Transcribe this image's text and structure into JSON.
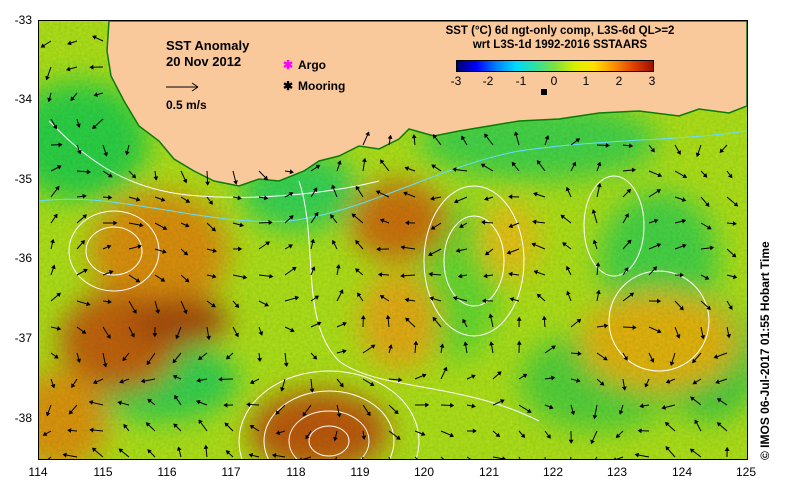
{
  "title": {
    "line1": "SST Anomaly",
    "line2": "20 Nov 2012"
  },
  "legend": {
    "argo_label": "Argo",
    "mooring_label": "Mooring",
    "argo_color": "#ff00ff",
    "mooring_color": "#000000"
  },
  "scale_arrow": {
    "label": "0.5 m/s"
  },
  "colorbar": {
    "line1": "SST (°C) 6d ngt-only comp, L3S-6d QL>=2",
    "line2": "wrt L3S-1d 1992-2016 SSTAARS",
    "ticks": [
      "-3",
      "-2",
      "-1",
      "0",
      "1",
      "2",
      "3"
    ],
    "range": [
      -3,
      3
    ],
    "colors": [
      "#00006e",
      "#0000ff",
      "#0080ff",
      "#00d8ff",
      "#30e0a0",
      "#80e040",
      "#d8f000",
      "#ffe000",
      "#ff9000",
      "#e04000",
      "#a01000"
    ]
  },
  "axes": {
    "x_ticks": [
      "114",
      "115",
      "116",
      "117",
      "118",
      "119",
      "120",
      "121",
      "122",
      "123",
      "124",
      "125"
    ],
    "y_ticks": [
      "-33",
      "-34",
      "-35",
      "-36",
      "-37",
      "-38"
    ],
    "lon_range": [
      114,
      125
    ],
    "lat_range": [
      -38.5,
      -33
    ]
  },
  "land_color": "#f9c89b",
  "credit": "© IMOS 06-Jul-2017 01:55 Hobart Time"
}
